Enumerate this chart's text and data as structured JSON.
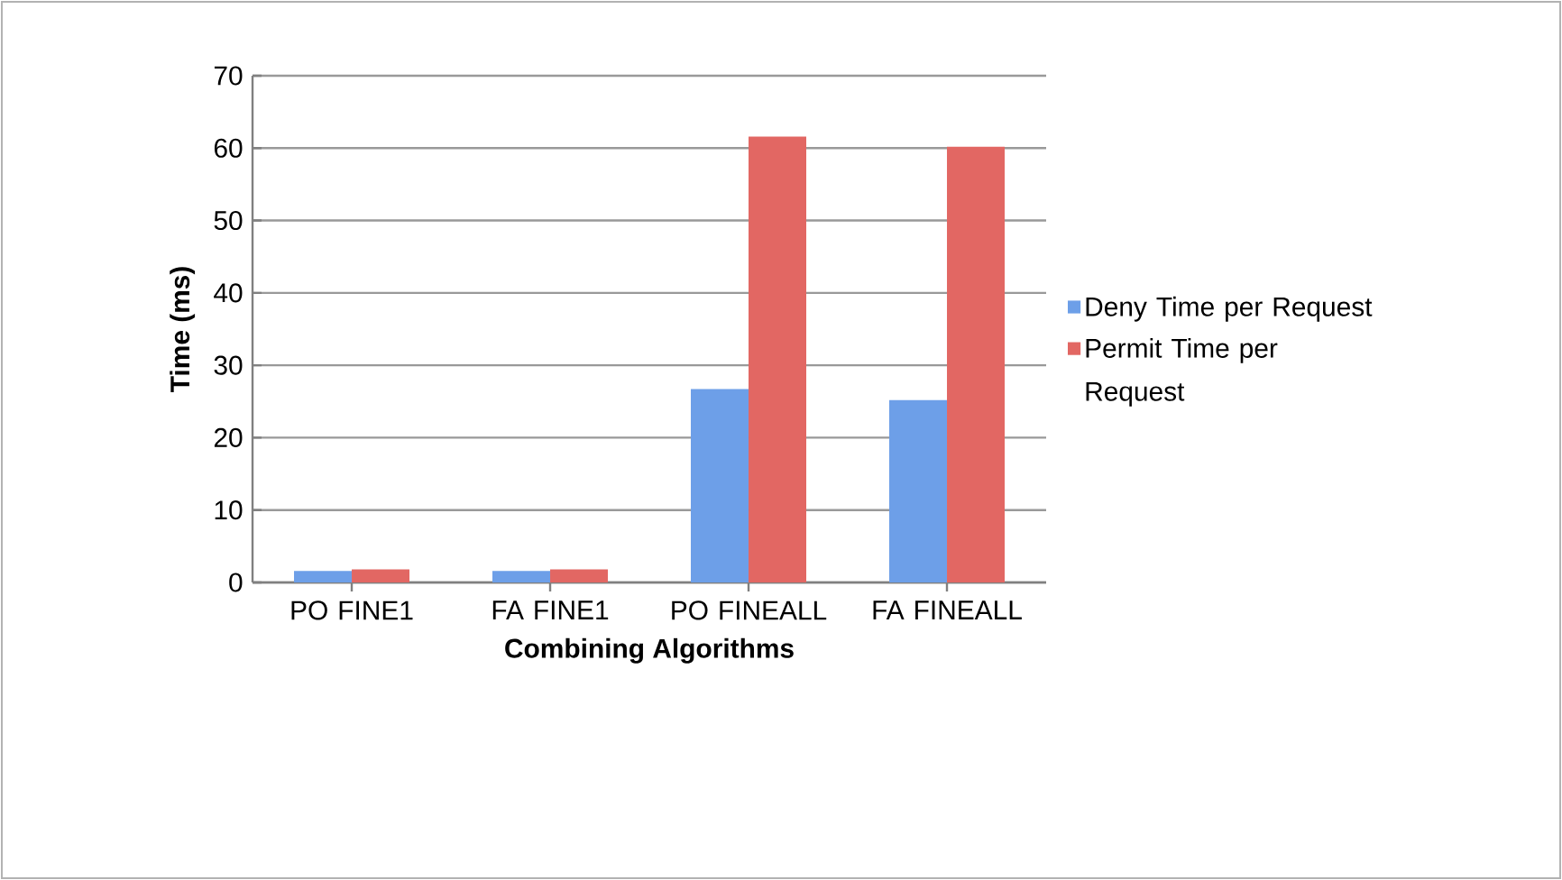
{
  "chart_data": {
    "type": "bar",
    "xlabel": "Combining Algorithms",
    "ylabel": "Time (ms)",
    "categories": [
      "PO FINE1",
      "FA FINE1",
      "PO FINEALL",
      "FA FINEALL"
    ],
    "series": [
      {
        "name": "Deny Time per Request",
        "color": "#6d9fe8",
        "values": [
          1.6,
          1.6,
          26.7,
          25.2
        ]
      },
      {
        "name": "Permit Time per Request",
        "color": "#e26763",
        "values": [
          1.8,
          1.8,
          61.6,
          60.2
        ]
      }
    ],
    "ylim": [
      0,
      70
    ],
    "yticks": [
      0,
      10,
      20,
      30,
      40,
      50,
      60,
      70
    ],
    "grid": "y",
    "legend": "right"
  }
}
